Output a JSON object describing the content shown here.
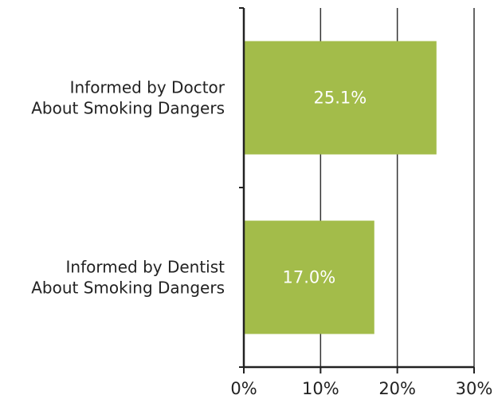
{
  "chart_data": {
    "type": "bar",
    "orientation": "horizontal",
    "categories": [
      [
        "Informed by Doctor",
        "About Smoking Dangers"
      ],
      [
        "Informed by Dentist",
        "About Smoking Dangers"
      ]
    ],
    "values": [
      25.1,
      17.0
    ],
    "data_labels": [
      "25.1%",
      "17.0%"
    ],
    "xlim": [
      0,
      30
    ],
    "xticks": [
      0,
      10,
      20,
      30
    ],
    "xtick_labels": [
      "0%",
      "10%",
      "20%",
      "30%"
    ],
    "title": "",
    "xlabel": "",
    "ylabel": "",
    "grid": "vertical",
    "bar_color": "#a3bc4a"
  }
}
